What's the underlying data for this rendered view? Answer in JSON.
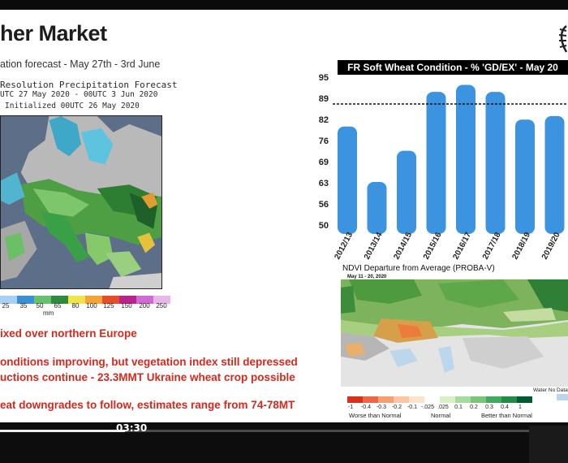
{
  "slide": {
    "title": "her Market",
    "subtitle": "ation forecast - May 27th - 3rd June"
  },
  "precip_map": {
    "header_line1": "Resolution Precipitation Forecast",
    "header_line2": "UTC 27 May 2020 - 00UTC 3 Jun 2020",
    "header_line3": "Initialized 00UTC 26 May 2020",
    "colorbar_labels": [
      "25",
      "35",
      "50",
      "65",
      "80",
      "100",
      "125",
      "150",
      "200",
      "250"
    ],
    "unit": "mm"
  },
  "bullets": [
    "ixed over northern Europe",
    "onditions improving, but vegetation index still depressed",
    "uctions continue - 23.3MMT Ukraine wheat crop possible",
    "eat downgrades to follow, estimates range from 74-78MT"
  ],
  "chart_data": {
    "type": "bar",
    "title": "FR Soft Wheat Condition - % 'GD/EX' - May 20",
    "categories": [
      "2012/13",
      "2013/14",
      "2014/15",
      "2015/16",
      "2016/17",
      "2017/18",
      "2018/19",
      "2019/20"
    ],
    "values": [
      81,
      65,
      74,
      91,
      93,
      91,
      83,
      84
    ],
    "yticks": [
      "95",
      "89",
      "82",
      "76",
      "69",
      "63",
      "56",
      "50"
    ],
    "ylim": [
      50,
      95
    ],
    "reference_line": 87.5,
    "bar_color": "#3c93e0",
    "grid": false
  },
  "ndvi": {
    "title": "NDVI Departure from Average (PROBA-V)",
    "date": "May 11 - 20, 2020",
    "water_no_data": "Water No Data",
    "legend_colors": [
      "#d7301f",
      "#ef6548",
      "#f59f6f",
      "#fcc5a3",
      "#fde2cc",
      "#ffffff",
      "#d9f0c6",
      "#a6dba0",
      "#78c679",
      "#41ab5d",
      "#238b45",
      "#005a32"
    ],
    "legend_labels": [
      "-1",
      "-0.4",
      "-0.3",
      "-0.2",
      "-0.1",
      "-.025",
      ".025",
      "0.1",
      "0.2",
      "0.3",
      "0.4",
      "1"
    ],
    "worse_label": "Worse than Normal",
    "normal_label": "Normal",
    "better_label": "Better than Normal"
  },
  "player": {
    "time": "03:30",
    "progress": 0.22
  }
}
